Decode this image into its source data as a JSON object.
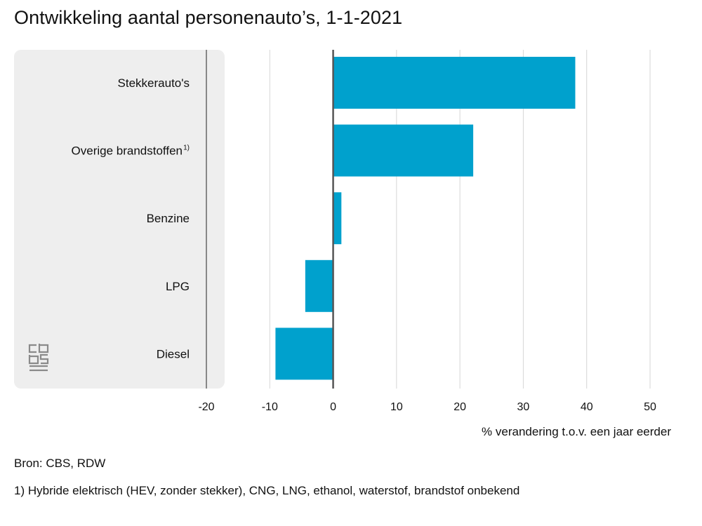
{
  "title": "Ontwikkeling aantal personenauto’s, 1-1-2021",
  "source": "Bron: CBS, RDW",
  "footnote": "1) Hybride elektrisch (HEV, zonder stekker), CNG, LNG, ethanol, waterstof, brandstof onbekend",
  "logo_icon": "cbs-logo-icon",
  "colors": {
    "bar": "#00a1cd",
    "panel": "#eeeeee",
    "grid": "#d6d6d6",
    "zero_line": "#555555"
  },
  "chart_data": {
    "type": "bar",
    "orientation": "horizontal",
    "title": "Ontwikkeling aantal personenauto’s, 1-1-2021",
    "categories": [
      {
        "label": "Stekkerauto's",
        "note": ""
      },
      {
        "label": "Overige brandstoffen",
        "note": "1)"
      },
      {
        "label": "Benzine",
        "note": ""
      },
      {
        "label": "LPG",
        "note": ""
      },
      {
        "label": "Diesel",
        "note": ""
      }
    ],
    "values": [
      38.2,
      22.1,
      1.3,
      -4.4,
      -9.1
    ],
    "xlabel": "% verandering t.o.v. een jaar eerder",
    "ylabel": "",
    "xlim": [
      -20,
      50
    ],
    "xticks": [
      -20,
      -10,
      0,
      10,
      20,
      30,
      40,
      50
    ],
    "xtick_labels": [
      "-20",
      "-10",
      "0",
      "10",
      "20",
      "30",
      "40",
      "50"
    ],
    "grid": true,
    "legend": "none"
  }
}
